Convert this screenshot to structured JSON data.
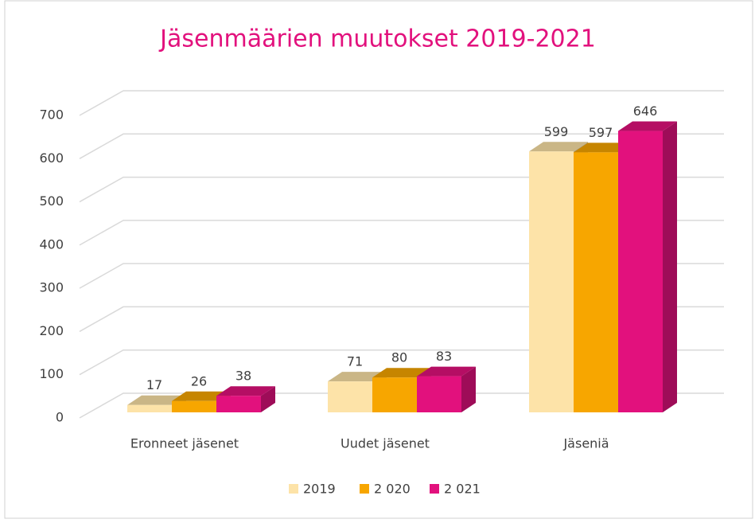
{
  "chart_data": {
    "type": "bar3d",
    "title": "Jäsenmäärien muutokset 2019-2021",
    "categories": [
      "Eronneet jäsenet",
      "Uudet jäsenet",
      "Jäseniä"
    ],
    "series": [
      {
        "name": "2019",
        "color": "#fde3a8",
        "values": [
          17,
          71,
          599
        ]
      },
      {
        "name": "2 020",
        "color": "#f7a600",
        "values": [
          26,
          80,
          597
        ]
      },
      {
        "name": "2 021",
        "color": "#e2117d",
        "values": [
          38,
          83,
          646
        ]
      }
    ],
    "ylim": [
      0,
      700
    ],
    "yticks": [
      0,
      100,
      200,
      300,
      400,
      500,
      600,
      700
    ],
    "grid": true,
    "legend": "bottom"
  }
}
